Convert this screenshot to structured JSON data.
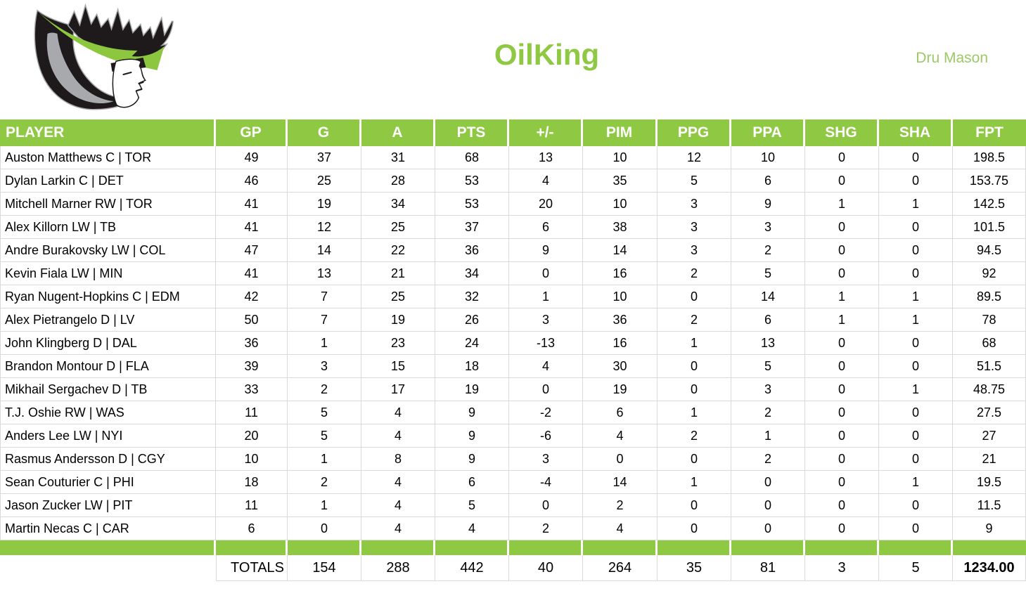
{
  "header": {
    "title": "OilKing",
    "owner": "Dru Mason",
    "logo": "oil-king-crown-head-logo"
  },
  "colors": {
    "accent_green": "#8FC843",
    "owner_text_green": "#9CC966",
    "grid_border": "#D9D9D9",
    "header_text": "#FFFFFF",
    "logo_black": "#1E1A1B",
    "logo_silver": "#A7A9AC"
  },
  "table": {
    "columns": [
      "PLAYER",
      "GP",
      "G",
      "A",
      "PTS",
      "+/-",
      "PIM",
      "PPG",
      "PPA",
      "SHG",
      "SHA",
      "FPT"
    ],
    "rows": [
      {
        "player": "Auston Matthews C | TOR",
        "stats": [
          "49",
          "37",
          "31",
          "68",
          "13",
          "10",
          "12",
          "10",
          "0",
          "0",
          "198.5"
        ]
      },
      {
        "player": "Dylan Larkin C | DET",
        "stats": [
          "46",
          "25",
          "28",
          "53",
          "4",
          "35",
          "5",
          "6",
          "0",
          "0",
          "153.75"
        ]
      },
      {
        "player": "Mitchell Marner RW | TOR",
        "stats": [
          "41",
          "19",
          "34",
          "53",
          "20",
          "10",
          "3",
          "9",
          "1",
          "1",
          "142.5"
        ]
      },
      {
        "player": "Alex Killorn LW | TB",
        "stats": [
          "41",
          "12",
          "25",
          "37",
          "6",
          "38",
          "3",
          "3",
          "0",
          "0",
          "101.5"
        ]
      },
      {
        "player": "Andre Burakovsky LW | COL",
        "stats": [
          "47",
          "14",
          "22",
          "36",
          "9",
          "14",
          "3",
          "2",
          "0",
          "0",
          "94.5"
        ]
      },
      {
        "player": "Kevin Fiala LW | MIN",
        "stats": [
          "41",
          "13",
          "21",
          "34",
          "0",
          "16",
          "2",
          "5",
          "0",
          "0",
          "92"
        ]
      },
      {
        "player": "Ryan Nugent-Hopkins C | EDM",
        "stats": [
          "42",
          "7",
          "25",
          "32",
          "1",
          "10",
          "0",
          "14",
          "1",
          "1",
          "89.5"
        ]
      },
      {
        "player": "Alex Pietrangelo D | LV",
        "stats": [
          "50",
          "7",
          "19",
          "26",
          "3",
          "36",
          "2",
          "6",
          "1",
          "1",
          "78"
        ]
      },
      {
        "player": "John Klingberg D | DAL",
        "stats": [
          "36",
          "1",
          "23",
          "24",
          "-13",
          "16",
          "1",
          "13",
          "0",
          "0",
          "68"
        ]
      },
      {
        "player": "Brandon Montour D | FLA",
        "stats": [
          "39",
          "3",
          "15",
          "18",
          "4",
          "30",
          "0",
          "5",
          "0",
          "0",
          "51.5"
        ]
      },
      {
        "player": "Mikhail Sergachev D | TB",
        "stats": [
          "33",
          "2",
          "17",
          "19",
          "0",
          "19",
          "0",
          "3",
          "0",
          "1",
          "48.75"
        ]
      },
      {
        "player": "T.J. Oshie RW | WAS",
        "stats": [
          "11",
          "5",
          "4",
          "9",
          "-2",
          "6",
          "1",
          "2",
          "0",
          "0",
          "27.5"
        ]
      },
      {
        "player": "Anders Lee LW | NYI",
        "stats": [
          "20",
          "5",
          "4",
          "9",
          "-6",
          "4",
          "2",
          "1",
          "0",
          "0",
          "27"
        ]
      },
      {
        "player": "Rasmus Andersson D | CGY",
        "stats": [
          "10",
          "1",
          "8",
          "9",
          "3",
          "0",
          "0",
          "2",
          "0",
          "0",
          "21"
        ]
      },
      {
        "player": "Sean Couturier C | PHI",
        "stats": [
          "18",
          "2",
          "4",
          "6",
          "-4",
          "14",
          "1",
          "0",
          "0",
          "1",
          "19.5"
        ]
      },
      {
        "player": "Jason Zucker LW | PIT",
        "stats": [
          "11",
          "1",
          "4",
          "5",
          "0",
          "2",
          "0",
          "0",
          "0",
          "0",
          "11.5"
        ]
      },
      {
        "player": "Martin Necas C | CAR",
        "stats": [
          "6",
          "0",
          "4",
          "4",
          "2",
          "4",
          "0",
          "0",
          "0",
          "0",
          "9"
        ]
      }
    ],
    "totals": {
      "label": "TOTALS",
      "values": [
        "154",
        "288",
        "442",
        "40",
        "264",
        "35",
        "81",
        "3",
        "5",
        "1234.00"
      ]
    }
  }
}
